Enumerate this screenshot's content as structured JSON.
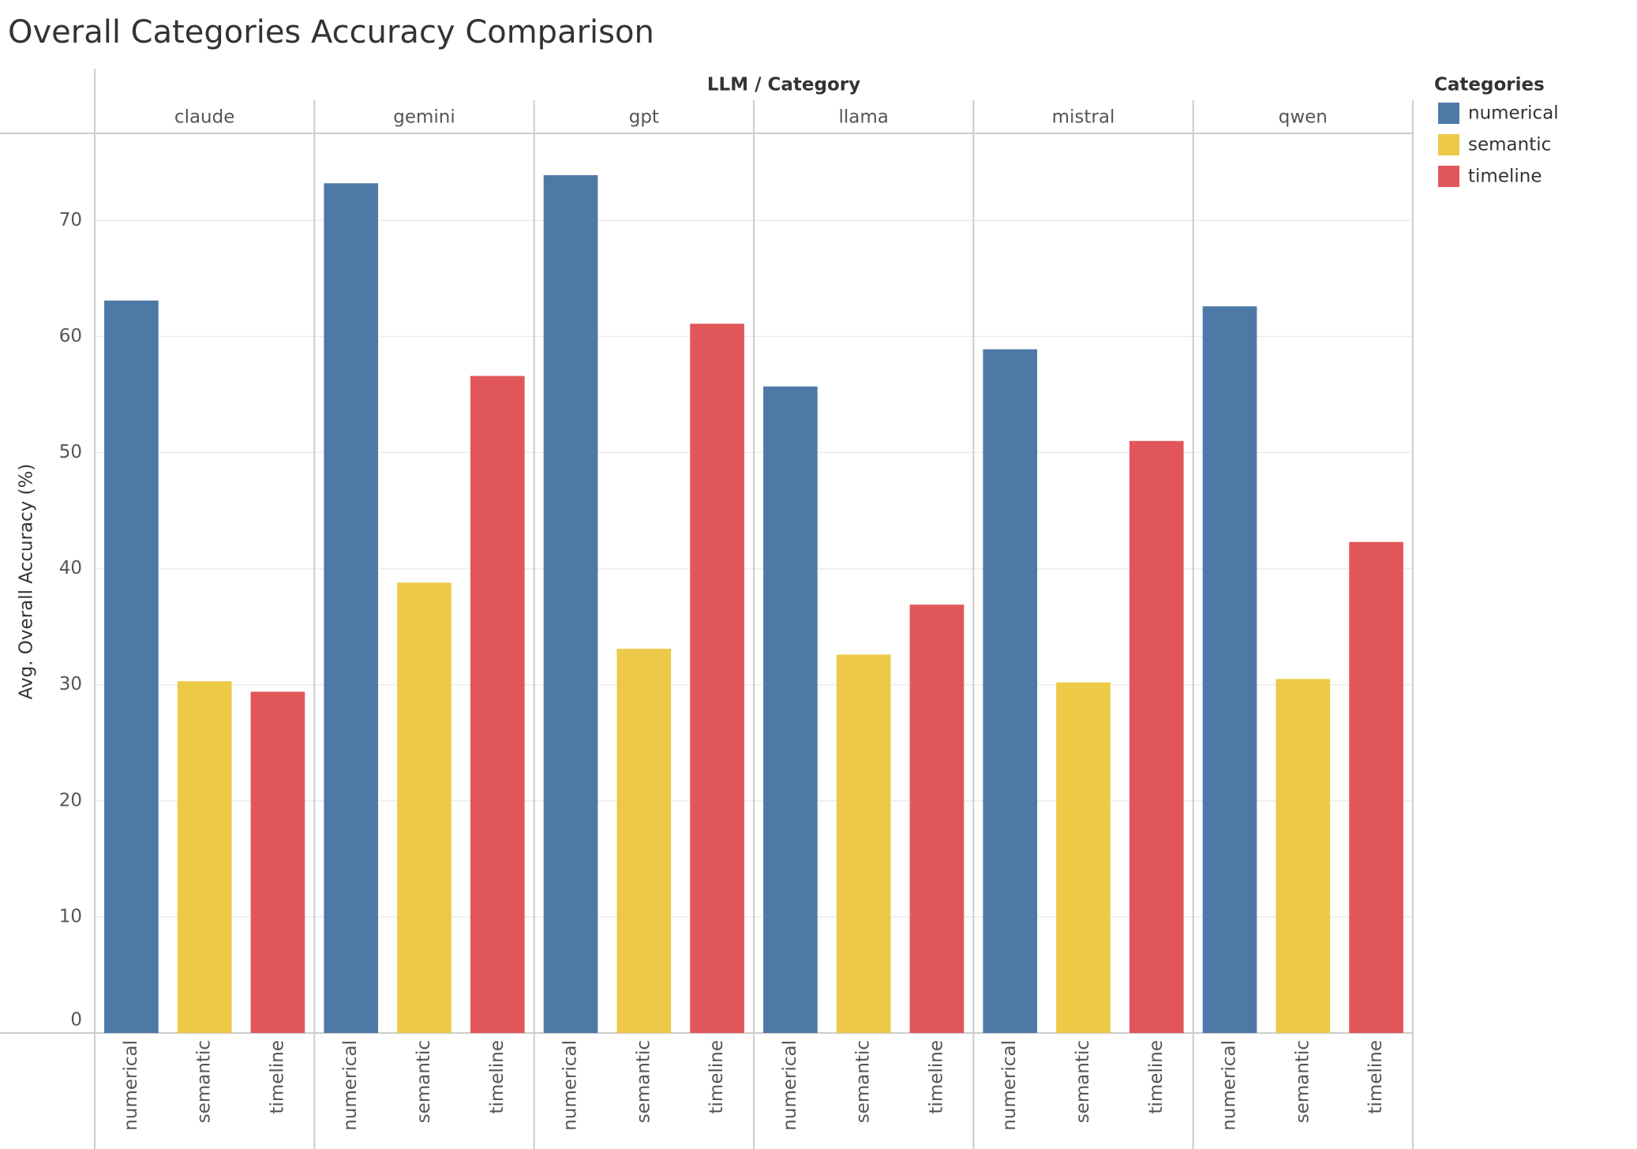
{
  "chart_data": {
    "type": "bar",
    "title": "Overall Categories Accuracy Comparison",
    "x_label": "LLM / Category",
    "y_label": "Avg. Overall Accuracy (%)",
    "legend_title": "Categories",
    "categories": [
      "claude",
      "gemini",
      "gpt",
      "llama",
      "mistral",
      "qwen"
    ],
    "series": [
      {
        "name": "numerical",
        "color": "#4e79a7",
        "values": [
          63.1,
          73.2,
          73.9,
          55.7,
          58.9,
          62.6
        ]
      },
      {
        "name": "semantic",
        "color": "#edc948",
        "values": [
          30.3,
          38.8,
          33.1,
          32.6,
          30.2,
          30.5
        ]
      },
      {
        "name": "timeline",
        "color": "#e15759",
        "values": [
          29.4,
          56.6,
          61.1,
          36.9,
          51.0,
          42.3
        ]
      }
    ],
    "ylim": [
      0,
      77.5
    ],
    "yticks": [
      0,
      10,
      20,
      30,
      40,
      50,
      60,
      70
    ],
    "grid": true
  }
}
